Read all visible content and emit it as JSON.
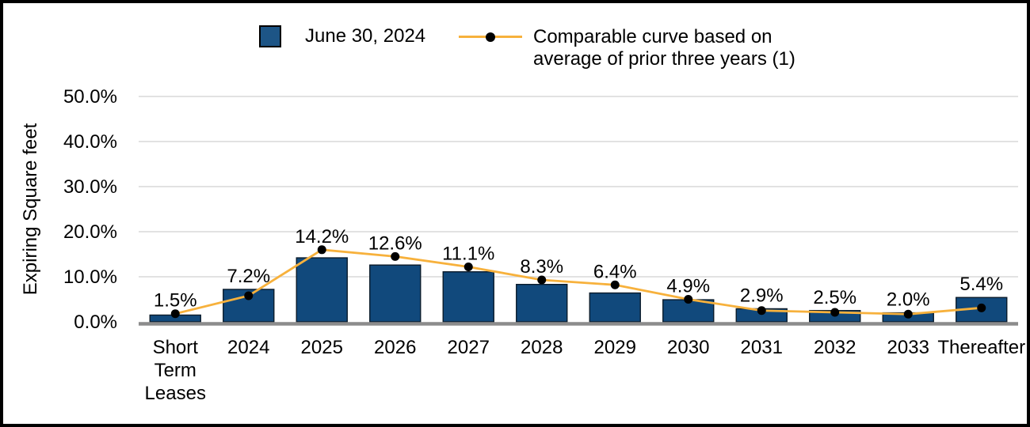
{
  "frame": {
    "background": "#FFFFFF",
    "border_color": "#000000"
  },
  "legend": {
    "items": [
      {
        "label": "June 30, 2024",
        "swatch": "square",
        "swatch_color": "#1D5586"
      },
      {
        "label": "Comparable curve based on average of prior three years (1)",
        "label_lines": [
          "Comparable curve based on",
          "average of prior three years (1)"
        ],
        "swatch": "line-with-dot",
        "line_color": "#F7B13C",
        "marker_color": "#000000"
      }
    ]
  },
  "chart_data": {
    "type": "combo",
    "categories": [
      "Short Term Leases",
      "2024",
      "2025",
      "2026",
      "2027",
      "2028",
      "2029",
      "2030",
      "2031",
      "2032",
      "2033",
      "Thereafter"
    ],
    "series": [
      {
        "name": "June 30, 2024",
        "type": "bar",
        "color": "#11497C",
        "border_color": "#0B1B2B",
        "values": [
          1.5,
          7.2,
          14.2,
          12.6,
          11.1,
          8.3,
          6.4,
          4.9,
          2.9,
          2.5,
          2.0,
          5.4
        ],
        "data_labels": [
          "1.5%",
          "7.2%",
          "14.2%",
          "12.6%",
          "11.1%",
          "8.3%",
          "6.4%",
          "4.9%",
          "2.9%",
          "2.5%",
          "2.0%",
          "5.4%"
        ]
      },
      {
        "name": "Comparable curve based on average of prior three years (1)",
        "type": "line",
        "color": "#F7B13C",
        "marker": "circle",
        "marker_color": "#000000",
        "values": [
          1.8,
          5.8,
          16.0,
          14.5,
          12.2,
          9.3,
          8.2,
          5.0,
          2.5,
          2.1,
          1.7,
          3.1
        ]
      }
    ],
    "title": "",
    "xlabel": "",
    "ylabel": "Expiring Square feet",
    "yticks": [
      "0.0%",
      "10.0%",
      "20.0%",
      "30.0%",
      "40.0%",
      "50.0%"
    ],
    "ylim": [
      0,
      50
    ],
    "grid": "horizontal",
    "legend_position": "top",
    "colors": {
      "gridline": "#D9D9D9",
      "axis_line": "#8C8C8C",
      "text": "#000000"
    }
  }
}
